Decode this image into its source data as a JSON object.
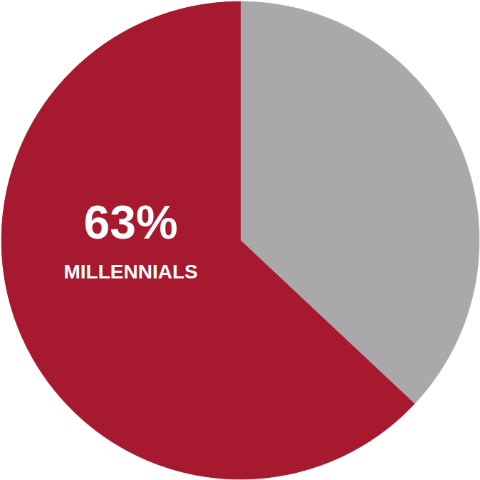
{
  "chart_data": {
    "type": "pie",
    "categories": [
      "MILLENNIALS",
      null
    ],
    "values": [
      63,
      37
    ],
    "value_labels": [
      "63%",
      null
    ],
    "colors": [
      "#a6192e",
      "#a9a9ab"
    ],
    "data_labels": true
  }
}
